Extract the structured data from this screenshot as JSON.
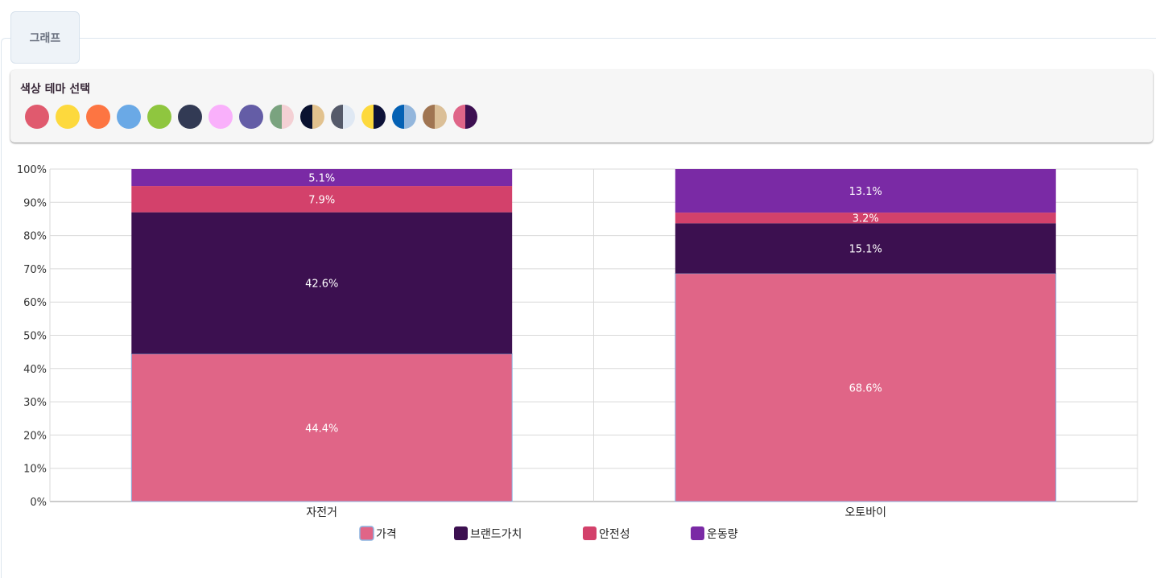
{
  "tab": {
    "label": "그래프"
  },
  "theme_picker": {
    "title": "색상 테마 선택",
    "swatches": [
      {
        "name": "red",
        "colors": [
          "#e05a6e"
        ]
      },
      {
        "name": "yellow",
        "colors": [
          "#fdd93d"
        ]
      },
      {
        "name": "orange",
        "colors": [
          "#fd7542"
        ]
      },
      {
        "name": "sky-blue",
        "colors": [
          "#6aa9e6"
        ]
      },
      {
        "name": "green",
        "colors": [
          "#8fc63f"
        ]
      },
      {
        "name": "navy",
        "colors": [
          "#323a54"
        ]
      },
      {
        "name": "pink",
        "colors": [
          "#f9b0fb"
        ]
      },
      {
        "name": "purple",
        "colors": [
          "#645da6"
        ]
      },
      {
        "name": "sage-blush",
        "colors": [
          "#7aa37f",
          "#f4d0d4"
        ]
      },
      {
        "name": "midnight-sand",
        "colors": [
          "#0a1230",
          "#e2c28e"
        ]
      },
      {
        "name": "slate-ice",
        "colors": [
          "#555a6a",
          "#dfe8f3"
        ]
      },
      {
        "name": "yellow-midnight",
        "colors": [
          "#fdd93d",
          "#0d1238"
        ]
      },
      {
        "name": "blue-powder",
        "colors": [
          "#0461b4",
          "#93b6dc"
        ]
      },
      {
        "name": "brown-tan",
        "colors": [
          "#a07552",
          "#dbbf97"
        ]
      },
      {
        "name": "rose-plum",
        "colors": [
          "#df6588",
          "#3d0f51"
        ]
      }
    ]
  },
  "chart_data": {
    "type": "bar",
    "stacked": true,
    "normalized": true,
    "categories": [
      "자전거",
      "오토바이"
    ],
    "series": [
      {
        "name": "가격",
        "color": "#e06587",
        "values": [
          44.4,
          68.6
        ],
        "labels": [
          "44.4%",
          "68.6%"
        ]
      },
      {
        "name": "브랜드가치",
        "color": "#3c1050",
        "values": [
          42.6,
          15.1
        ],
        "labels": [
          "42.6%",
          "15.1%"
        ]
      },
      {
        "name": "안전성",
        "color": "#d3416b",
        "values": [
          7.9,
          3.2
        ],
        "labels": [
          "7.9%",
          "3.2%"
        ]
      },
      {
        "name": "운동량",
        "color": "#7a2aa5",
        "values": [
          5.1,
          13.1
        ],
        "labels": [
          "5.1%",
          "13.1%"
        ]
      }
    ],
    "ylim": [
      0,
      100
    ],
    "yticks": [
      "0%",
      "10%",
      "20%",
      "30%",
      "40%",
      "50%",
      "60%",
      "70%",
      "80%",
      "90%",
      "100%"
    ],
    "grid": true,
    "legend": "bottom-center",
    "title": "",
    "xlabel": "",
    "ylabel": ""
  }
}
